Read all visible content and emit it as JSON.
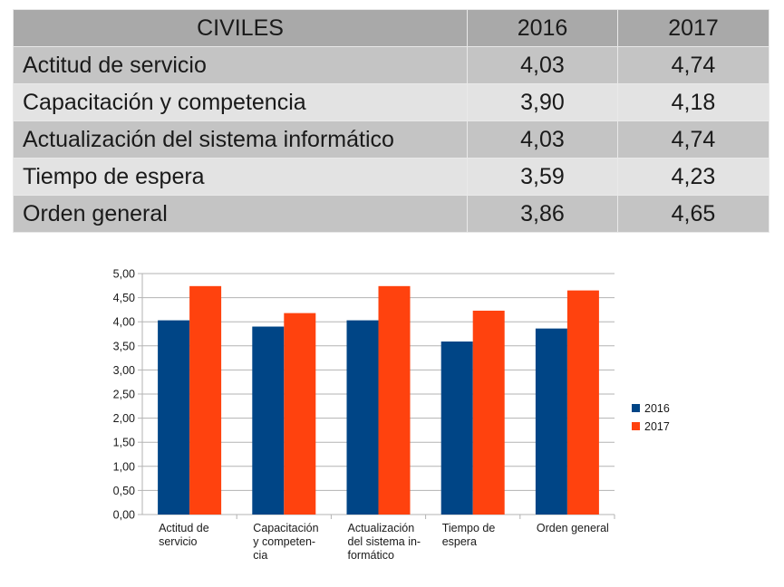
{
  "table": {
    "headers": [
      "CIVILES",
      "2016",
      "2017"
    ],
    "rows": [
      [
        "Actitud de servicio",
        "4,03",
        "4,74"
      ],
      [
        "Capacitación y competencia",
        "3,90",
        "4,18"
      ],
      [
        "Actualización del sistema informático",
        "4,03",
        "4,74"
      ],
      [
        "Tiempo de espera",
        "3,59",
        "4,23"
      ],
      [
        "Orden general",
        "3,86",
        "4,65"
      ]
    ]
  },
  "chart_data": {
    "type": "bar",
    "categories": [
      [
        "Actitud de",
        "servicio"
      ],
      [
        "Capacitación",
        "y competen-",
        "cia"
      ],
      [
        "Actualización",
        "del sistema in-",
        "formático"
      ],
      [
        "Tiempo de",
        "espera"
      ],
      [
        "Orden general"
      ]
    ],
    "series": [
      {
        "name": "2016",
        "color": "#004586",
        "values": [
          4.03,
          3.9,
          4.03,
          3.59,
          3.86
        ]
      },
      {
        "name": "2017",
        "color": "#ff420e",
        "values": [
          4.74,
          4.18,
          4.74,
          4.23,
          4.65
        ]
      }
    ],
    "ylim": [
      0,
      5
    ],
    "yticks": [
      "0,00",
      "0,50",
      "1,00",
      "1,50",
      "2,00",
      "2,50",
      "3,00",
      "3,50",
      "4,00",
      "4,50",
      "5,00"
    ],
    "grid": true,
    "legend": "right"
  }
}
